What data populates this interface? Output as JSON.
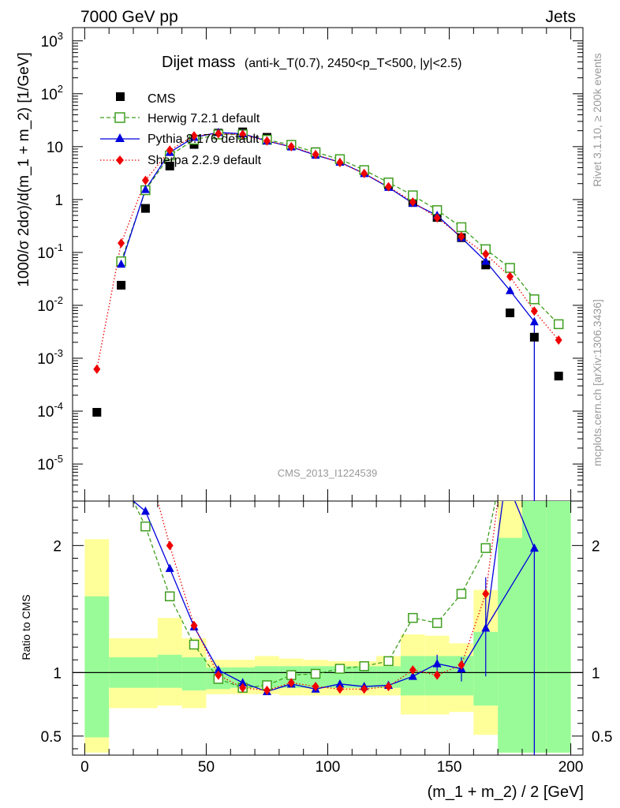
{
  "header": {
    "left": "7000 GeV pp",
    "right": "Jets"
  },
  "side": {
    "rivet": "Rivet 3.1.10, ≥ 200k events",
    "mcplots": "mcplots.cern.ch [arXiv:1306.3436]"
  },
  "chart_data": [
    {
      "type": "scatter",
      "title_main": "Dijet mass",
      "title_sub": "(anti-k_T(0.7), 2450<p_T<500, |y|<2.5)",
      "analysis_id": "CMS_2013_I1224539",
      "ylabel": "1000/σ 2dσ)/d(m_1 + m_2) [1/GeV]",
      "xlim": [
        -5,
        205
      ],
      "ylim_log10": [
        -5.7,
        3.25
      ],
      "yscale": "log",
      "y_tick_labels": [
        "10^-5",
        "10^-4",
        "10^-3",
        "10^-2",
        "10^-1",
        "1",
        "10",
        "10^2",
        "10^3"
      ],
      "series": [
        {
          "name": "CMS",
          "color": "#000000",
          "marker": "square",
          "line": "none",
          "x": [
            5,
            15,
            25,
            35,
            45,
            55,
            65,
            75,
            85,
            95,
            105,
            115,
            125,
            135,
            145,
            155,
            165,
            175,
            185,
            195
          ],
          "y": [
            9.5e-05,
            0.024,
            0.68,
            4.3,
            11,
            18,
            19,
            15,
            11,
            8,
            5.7,
            3.5,
            1.9,
            0.88,
            0.46,
            0.19,
            0.058,
            0.0072,
            0.0025,
            0.00046
          ]
        },
        {
          "name": "Herwig 7.2.1 default",
          "color": "#3f9e1f",
          "marker": "open-square",
          "line": "dashed",
          "x": [
            15,
            25,
            35,
            45,
            55,
            65,
            75,
            85,
            95,
            105,
            115,
            125,
            135,
            145,
            155,
            165,
            175,
            185,
            195
          ],
          "y": [
            0.068,
            1.5,
            6.8,
            13.5,
            17,
            17,
            13.5,
            10.8,
            7.8,
            5.8,
            3.6,
            2.1,
            1.2,
            0.63,
            0.3,
            0.115,
            0.051,
            0.013,
            0.0044
          ]
        },
        {
          "name": "Pythia 8.176 default",
          "color": "#0000dd",
          "marker": "triangle",
          "line": "solid",
          "x": [
            15,
            25,
            35,
            45,
            55,
            65,
            75,
            85,
            95,
            105,
            115,
            125,
            135,
            145,
            155,
            165,
            175,
            185
          ],
          "y": [
            0.06,
            1.55,
            7.8,
            15,
            18.5,
            17.5,
            12.8,
            9.9,
            6.9,
            5.1,
            3.1,
            1.7,
            0.85,
            0.5,
            0.19,
            0.068,
            0.019,
            0.0049
          ]
        },
        {
          "name": "Sherpa 2.2.9 default",
          "color": "#ee0000",
          "marker": "diamond",
          "line": "dotted",
          "x": [
            5,
            15,
            25,
            35,
            45,
            55,
            65,
            75,
            85,
            95,
            105,
            115,
            125,
            135,
            145,
            155,
            165,
            175,
            185,
            195
          ],
          "y": [
            0.00062,
            0.15,
            2.3,
            8.6,
            16,
            17.5,
            17,
            12.8,
            10,
            7.1,
            5,
            3.1,
            1.75,
            0.9,
            0.45,
            0.2,
            0.093,
            0.035,
            0.0078,
            0.0022
          ]
        }
      ]
    },
    {
      "type": "scatter",
      "ylabel": "Ratio to CMS",
      "xlabel": "(m_1 + m_2) / 2 [GeV]",
      "xlim": [
        -5,
        205
      ],
      "ylim": [
        0.35,
        2.35
      ],
      "y_ticks": [
        0.5,
        1,
        2
      ],
      "x_ticks": [
        0,
        50,
        100,
        150,
        200
      ],
      "reference_line": 1,
      "uncertainty_bins": {
        "edges": [
          0,
          10,
          20,
          30,
          40,
          50,
          60,
          70,
          80,
          90,
          100,
          110,
          120,
          130,
          140,
          150,
          160,
          170,
          180,
          190,
          200
        ],
        "green_lo": [
          0.49,
          0.88,
          0.88,
          0.88,
          0.86,
          0.87,
          0.88,
          0.88,
          0.88,
          0.88,
          0.88,
          0.88,
          0.88,
          0.82,
          0.82,
          0.82,
          0.74,
          0.37,
          0.37,
          0.37
        ],
        "green_hi": [
          1.6,
          1.12,
          1.12,
          1.14,
          1.12,
          1.04,
          1.04,
          1.05,
          1.05,
          1.05,
          1.05,
          1.05,
          1.05,
          1.13,
          1.13,
          1.13,
          1.32,
          2.06,
          2.35,
          2.35
        ],
        "yellow_lo": [
          0.37,
          0.72,
          0.72,
          0.74,
          0.72,
          0.83,
          0.83,
          0.83,
          0.82,
          0.82,
          0.82,
          0.82,
          0.82,
          0.67,
          0.67,
          0.69,
          0.51,
          0.37,
          0.37,
          0.37
        ],
        "yellow_hi": [
          2.05,
          1.27,
          1.27,
          1.43,
          1.27,
          1.1,
          1.1,
          1.13,
          1.11,
          1.1,
          1.09,
          1.09,
          1.13,
          1.3,
          1.29,
          1.23,
          1.65,
          2.35,
          2.35,
          2.35
        ]
      },
      "series": [
        {
          "name": "Herwig 7.2.1 default",
          "x": [
            25,
            35,
            45,
            55,
            65,
            75,
            85,
            95,
            105,
            115,
            125,
            135,
            145,
            155,
            165
          ],
          "y": [
            2.15,
            1.6,
            1.22,
            0.95,
            0.88,
            0.9,
            0.98,
            0.99,
            1.03,
            1.05,
            1.09,
            1.43,
            1.39,
            1.62,
            1.98
          ]
        },
        {
          "name": "Pythia 8.176 default",
          "x": [
            25,
            35,
            45,
            55,
            65,
            75,
            85,
            95,
            105,
            115,
            125,
            135,
            145,
            155,
            165,
            185
          ],
          "y": [
            2.27,
            1.82,
            1.36,
            1.02,
            0.92,
            0.85,
            0.91,
            0.87,
            0.91,
            0.89,
            0.9,
            0.97,
            1.07,
            1.03,
            1.35,
            1.98
          ]
        },
        {
          "name": "Sherpa 2.2.9 default",
          "x": [
            35,
            45,
            55,
            65,
            75,
            85,
            95,
            105,
            115,
            125,
            135,
            145,
            155,
            165
          ],
          "y": [
            2.0,
            1.37,
            0.98,
            0.88,
            0.86,
            0.92,
            0.89,
            0.87,
            0.87,
            0.89,
            1.02,
            0.98,
            1.06,
            1.62
          ]
        }
      ]
    }
  ]
}
